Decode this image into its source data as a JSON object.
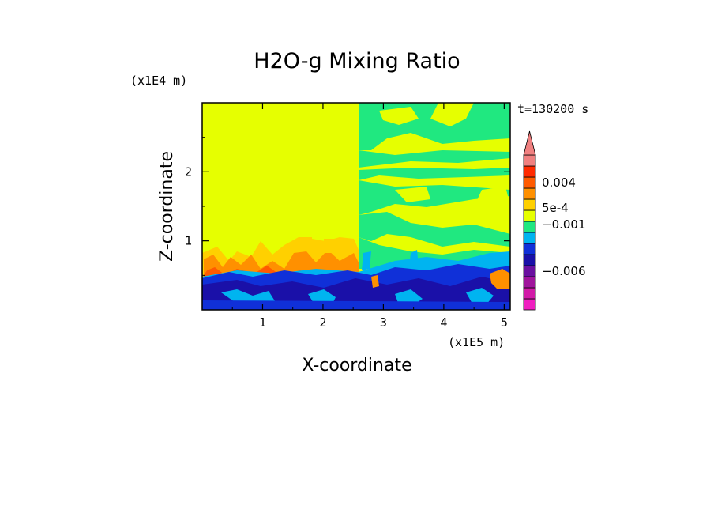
{
  "chart_data": {
    "type": "heatmap",
    "title": "H2O-g Mixing Ratio",
    "xlabel": "X-coordinate",
    "ylabel": "Z-coordinate",
    "x_scale_label": "(x1E5 m)",
    "y_scale_label": "(x1E4 m)",
    "time_label": "t=130200 s",
    "xlim": [
      0,
      5.1
    ],
    "ylim": [
      0,
      3.0
    ],
    "x_ticks": [
      1,
      2,
      3,
      4,
      5
    ],
    "y_ticks": [
      1,
      2
    ],
    "x_tick_labels": [
      "1",
      "2",
      "3",
      "4",
      "5"
    ],
    "y_tick_labels": [
      "1",
      "2"
    ],
    "colorbar": {
      "colors": [
        "#f01ec0",
        "#d21aa8",
        "#a0149c",
        "#6a10a0",
        "#1a10a8",
        "#1030d8",
        "#00b4f0",
        "#20e880",
        "#e6ff00",
        "#ffd000",
        "#ff9000",
        "#ff5a00",
        "#ff2a00",
        "#f08080"
      ],
      "extend_top": true,
      "labels": [
        {
          "text": "0.004",
          "value": 0.004
        },
        {
          "text": "5e-4",
          "value": 0.0005
        },
        {
          "text": "−0.001",
          "value": -0.001
        },
        {
          "text": "−0.006",
          "value": -0.006
        }
      ]
    },
    "regions": [
      {
        "level": "yellow",
        "description": "upper domain x<2.55"
      },
      {
        "level": "green",
        "description": "upper domain x>2.55 mixed with yellow"
      },
      {
        "level": "blue",
        "description": "boundary layer below ~0.6"
      }
    ]
  }
}
